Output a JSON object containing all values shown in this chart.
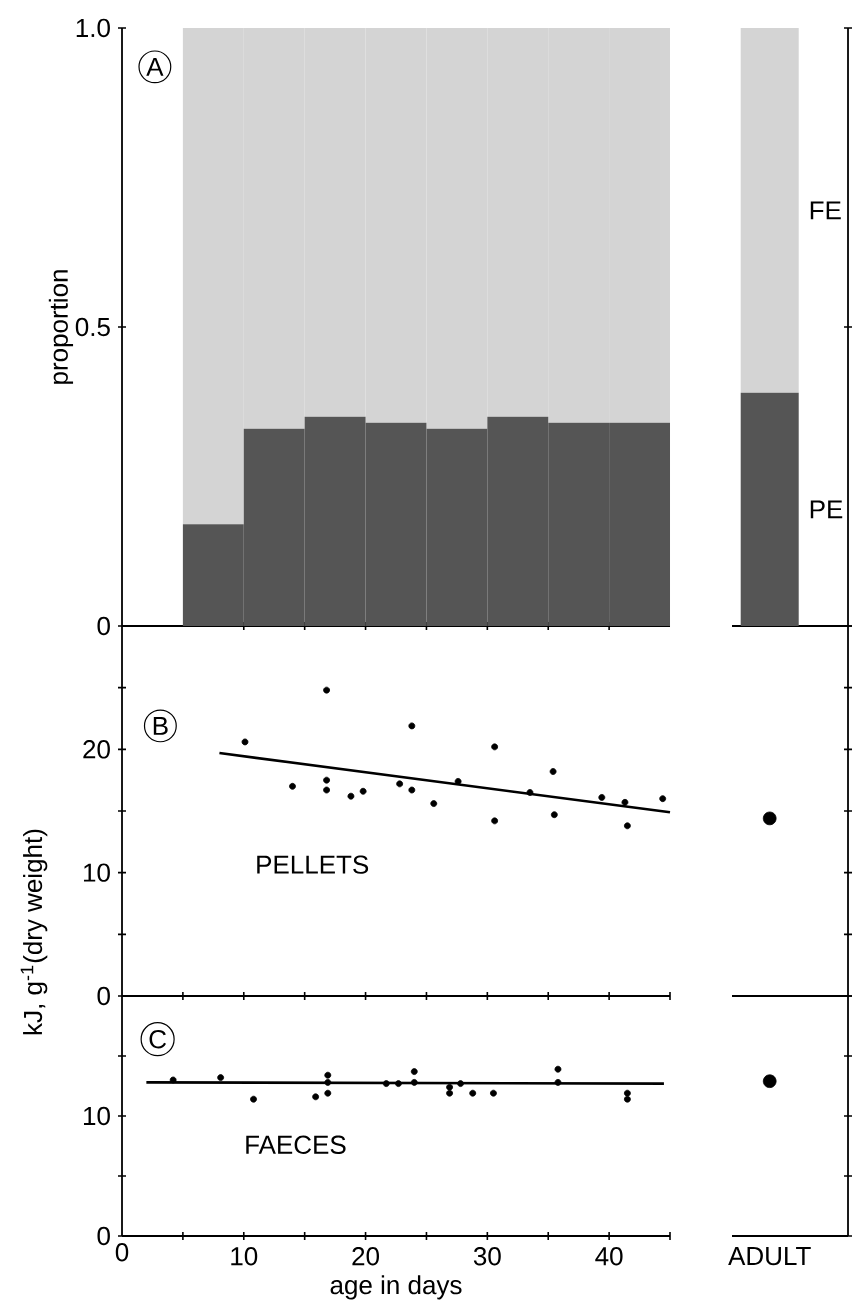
{
  "chart_data": [
    {
      "type": "bar",
      "stacked": true,
      "x": [
        7.5,
        12.5,
        17.5,
        22.5,
        27.5,
        32.5,
        37.5,
        42.5
      ],
      "series": [
        {
          "color": "#555555",
          "values": [
            0.17,
            0.33,
            0.35,
            0.34,
            0.33,
            0.35,
            0.34,
            0.34
          ]
        },
        {
          "color": "#d4d4d4",
          "values": [
            0.83,
            0.67,
            0.65,
            0.66,
            0.67,
            0.65,
            0.66,
            0.66
          ]
        }
      ],
      "xlim": [
        0,
        45
      ],
      "xticks": [
        {
          "value": 10,
          "label": null
        },
        {
          "value": 15,
          "label": null
        },
        {
          "value": 20,
          "label": null
        },
        {
          "value": 25,
          "label": null
        },
        {
          "value": 30,
          "label": null
        },
        {
          "value": 35,
          "label": null
        },
        {
          "value": 40,
          "label": null
        }
      ],
      "ylim": [
        0,
        1
      ],
      "yticks": [
        0,
        0.5,
        {
          "value": 1,
          "label": "1.0"
        }
      ],
      "ylabel": "proportion",
      "tick_labels": "y",
      "annotations": [
        "A"
      ]
    },
    {
      "type": "bar",
      "stacked": true,
      "categories": [
        null
      ],
      "series": [
        {
          "name": "PE",
          "color": "#555555",
          "values": [
            0.39
          ]
        },
        {
          "name": "FE",
          "color": "#d4d4d4",
          "values": [
            0.61
          ]
        }
      ],
      "ylim": [
        0,
        1
      ],
      "yticks": [
        {
          "value": 0,
          "label": null
        },
        {
          "value": 0.5,
          "label": null
        },
        {
          "value": 1,
          "label": null
        }
      ],
      "tick_labels": false
    },
    {
      "type": "scatter",
      "series": [
        {
          "color": "#000000",
          "x": [
            10.1,
            14.0,
            16.8,
            16.8,
            16.8,
            18.8,
            19.8,
            22.8,
            23.8,
            23.8,
            25.6,
            27.6,
            30.6,
            30.6,
            33.5,
            35.4,
            35.5,
            39.4,
            41.3,
            41.5,
            44.4
          ],
          "values": [
            20.6,
            17.0,
            24.8,
            17.5,
            16.7,
            16.2,
            16.6,
            17.2,
            21.9,
            16.7,
            15.6,
            17.4,
            20.2,
            14.2,
            16.5,
            18.2,
            14.7,
            16.1,
            15.7,
            13.8,
            16.0
          ]
        },
        {
          "type": "line",
          "color": "#000000",
          "x": [
            8,
            45
          ],
          "values": [
            19.7,
            14.9
          ]
        }
      ],
      "xlim": [
        0,
        45
      ],
      "xticks": [
        {
          "value": 5,
          "label": null
        },
        {
          "value": 10,
          "label": null
        },
        {
          "value": 15,
          "label": null
        },
        {
          "value": 20,
          "label": null
        },
        {
          "value": 25,
          "label": null
        },
        {
          "value": 30,
          "label": null
        },
        {
          "value": 35,
          "label": null
        },
        {
          "value": 40,
          "label": null
        },
        {
          "value": 45,
          "label": null
        }
      ],
      "ylim": [
        0,
        30
      ],
      "yticks": [
        0,
        {
          "value": 5,
          "label": null
        },
        10,
        {
          "value": 15,
          "label": null
        },
        20,
        {
          "value": 25,
          "label": null
        }
      ],
      "ylabel": "kJ, g$^{-1}$(dry weight)",
      "tick_labels": "y",
      "annotations": [
        "B",
        "PELLETS"
      ]
    },
    {
      "type": "scatter",
      "categories": [
        null
      ],
      "series": [
        {
          "color": "#000000",
          "values": [
            14.4
          ]
        }
      ],
      "ylim": [
        0,
        30
      ],
      "yticks": [
        {
          "value": 0,
          "label": null
        },
        {
          "value": 5,
          "label": null
        },
        {
          "value": 10,
          "label": null
        },
        {
          "value": 15,
          "label": null
        },
        {
          "value": 20,
          "label": null
        },
        {
          "value": 25,
          "label": null
        },
        {
          "value": 30,
          "label": null
        }
      ],
      "tick_labels": false
    },
    {
      "type": "scatter",
      "series": [
        {
          "color": "#000000",
          "x": [
            4.2,
            8.1,
            10.8,
            15.9,
            16.9,
            16.9,
            16.9,
            21.7,
            22.7,
            24.0,
            24.0,
            26.9,
            26.9,
            27.8,
            28.8,
            30.5,
            35.8,
            35.8,
            41.5,
            41.5
          ],
          "values": [
            13.0,
            13.2,
            11.4,
            11.6,
            13.4,
            12.8,
            11.9,
            12.7,
            12.7,
            13.7,
            12.8,
            12.4,
            11.9,
            12.7,
            11.9,
            11.9,
            13.9,
            12.8,
            11.9,
            11.4
          ]
        },
        {
          "type": "line",
          "color": "#000000",
          "x": [
            2,
            44.5
          ],
          "values": [
            12.8,
            12.7
          ]
        }
      ],
      "xlim": [
        0,
        45
      ],
      "xticks": [
        0,
        {
          "value": 5,
          "label": null
        },
        10,
        {
          "value": 15,
          "label": null
        },
        20,
        {
          "value": 25,
          "label": null
        },
        30,
        {
          "value": 35,
          "label": null
        },
        40,
        {
          "value": 45,
          "label": null
        }
      ],
      "ylim": [
        0,
        20
      ],
      "yticks": [
        0,
        {
          "value": 5,
          "label": null
        },
        10,
        {
          "value": 15,
          "label": null
        }
      ],
      "xlabel": "age in days",
      "annotations": [
        "C",
        "FAECES"
      ]
    },
    {
      "type": "scatter",
      "categories": [
        "ADULT"
      ],
      "series": [
        {
          "color": "#000000",
          "values": [
            12.9
          ]
        }
      ],
      "ylim": [
        0,
        20
      ],
      "yticks": [
        {
          "value": 0,
          "label": null
        },
        {
          "value": 5,
          "label": null
        },
        {
          "value": 10,
          "label": null
        },
        {
          "value": 15,
          "label": null
        },
        {
          "value": 20,
          "label": null
        }
      ],
      "tick_labels": "x"
    }
  ]
}
